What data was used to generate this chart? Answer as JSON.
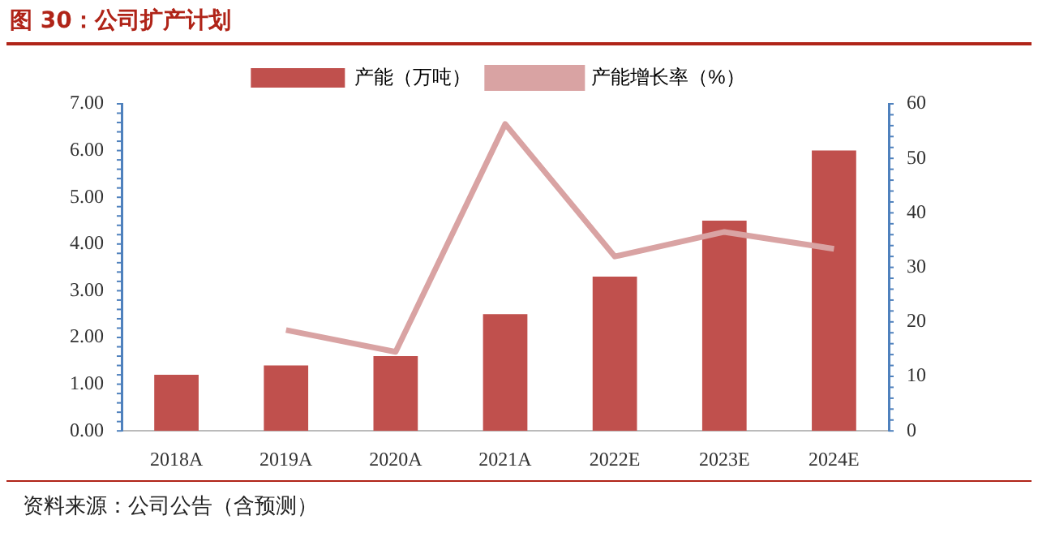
{
  "chart_data": {
    "type": "bar",
    "title": "图 30：公司扩产计划",
    "categories": [
      "2018A",
      "2019A",
      "2020A",
      "2021A",
      "2022E",
      "2023E",
      "2024E"
    ],
    "series": [
      {
        "name": "产能（万吨）",
        "color": "#c0504d",
        "values": [
          1.2,
          1.4,
          1.6,
          2.5,
          3.3,
          4.5,
          6.0
        ]
      },
      {
        "name": "产能增长率（%）",
        "type": "line",
        "axis": "y2",
        "color": "#d9a3a3",
        "values": [
          null,
          18.5,
          14.5,
          56.3,
          32,
          36.5,
          33.4
        ]
      }
    ],
    "ylim": [
      0,
      7
    ],
    "yticks": [
      {
        "value": 0,
        "label": "0.00"
      },
      {
        "value": 1,
        "label": "1.00"
      },
      {
        "value": 2,
        "label": "2.00"
      },
      {
        "value": 3,
        "label": "3.00"
      },
      {
        "value": 4,
        "label": "4.00"
      },
      {
        "value": 5,
        "label": "5.00"
      },
      {
        "value": 6,
        "label": "6.00"
      },
      {
        "value": 7,
        "label": "7.00"
      }
    ],
    "y2lim": [
      0,
      60
    ],
    "y2ticks": [
      0,
      10,
      20,
      30,
      40,
      50,
      60
    ],
    "grid": false,
    "legend": "top",
    "marker": "none",
    "line_style": "solid",
    "annotations": [
      "资料来源：公司公告（含预测）"
    ]
  }
}
